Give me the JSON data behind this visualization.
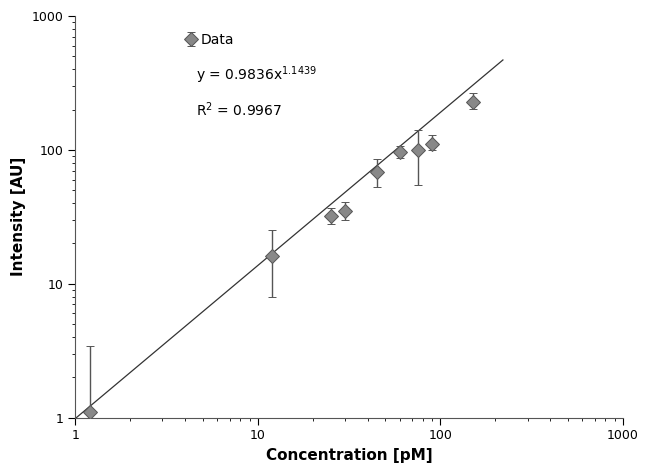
{
  "x": [
    1.2,
    12,
    25,
    30,
    45,
    60,
    75,
    90,
    150
  ],
  "y": [
    1.1,
    16,
    32,
    35,
    68,
    97,
    100,
    110,
    230
  ],
  "yerr_low": [
    0.7,
    8,
    4,
    5,
    15,
    10,
    45,
    10,
    28
  ],
  "yerr_high": [
    2.3,
    9,
    5,
    6,
    18,
    10,
    40,
    20,
    35
  ],
  "coeff": 0.9836,
  "exponent": 1.1439,
  "r2": 0.9967,
  "xlabel": "Concentration [pM]",
  "ylabel": "Intensity [AU]",
  "xlim": [
    1,
    1000
  ],
  "ylim": [
    1,
    1000
  ],
  "x_fit_start": 1.0,
  "x_fit_end": 220,
  "marker_color": "#888888",
  "marker_edge_color": "#555555",
  "line_color": "#333333",
  "legend_label": "Data",
  "background_color": "#ffffff",
  "marker_size": 7,
  "capsize": 3,
  "elinewidth": 1.0,
  "linewidth": 0.9
}
